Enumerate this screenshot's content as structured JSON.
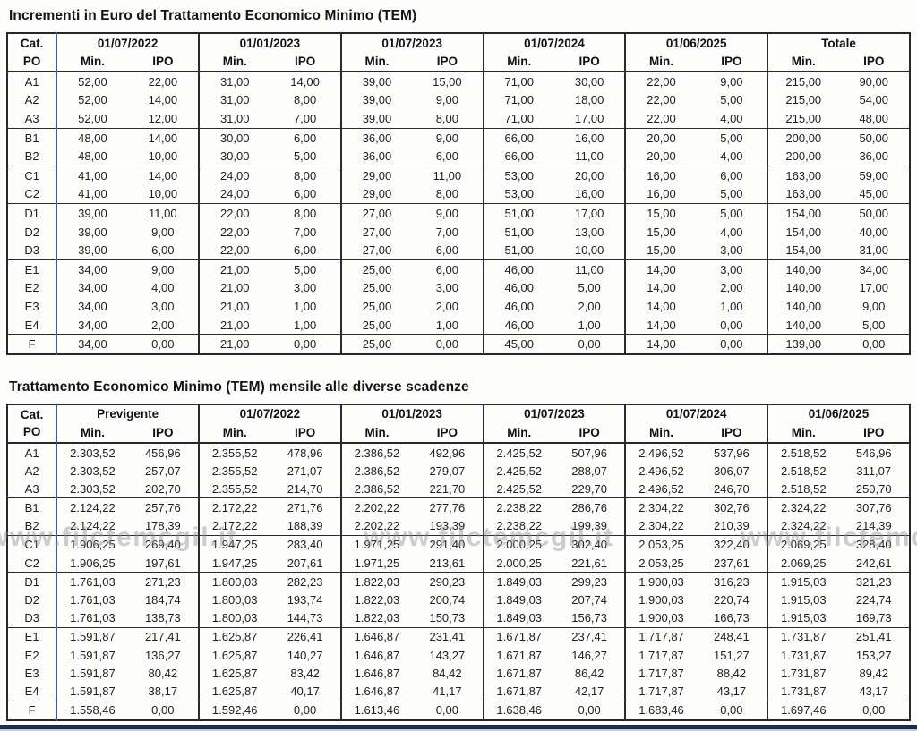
{
  "page": {
    "watermark_text": "www.filctemcgil.it"
  },
  "table1": {
    "name": "tem-increments-table",
    "title": "Incrementi in Euro del Trattamento Economico Minimo (TEM)",
    "cat_label_top": "Cat.",
    "cat_label_bottom": "PO",
    "min_label": "Min.",
    "ipo_label": "IPO",
    "column_groups": [
      "01/07/2022",
      "01/01/2023",
      "01/07/2023",
      "01/07/2024",
      "01/06/2025",
      "Totale"
    ],
    "category_group_sizes": [
      3,
      2,
      2,
      3,
      4,
      1
    ],
    "rows": [
      {
        "cat": "A1",
        "values": [
          "52,00",
          "22,00",
          "31,00",
          "14,00",
          "39,00",
          "15,00",
          "71,00",
          "30,00",
          "22,00",
          "9,00",
          "215,00",
          "90,00"
        ]
      },
      {
        "cat": "A2",
        "values": [
          "52,00",
          "14,00",
          "31,00",
          "8,00",
          "39,00",
          "9,00",
          "71,00",
          "18,00",
          "22,00",
          "5,00",
          "215,00",
          "54,00"
        ]
      },
      {
        "cat": "A3",
        "values": [
          "52,00",
          "12,00",
          "31,00",
          "7,00",
          "39,00",
          "8,00",
          "71,00",
          "17,00",
          "22,00",
          "4,00",
          "215,00",
          "48,00"
        ]
      },
      {
        "cat": "B1",
        "values": [
          "48,00",
          "14,00",
          "30,00",
          "6,00",
          "36,00",
          "9,00",
          "66,00",
          "16,00",
          "20,00",
          "5,00",
          "200,00",
          "50,00"
        ]
      },
      {
        "cat": "B2",
        "values": [
          "48,00",
          "10,00",
          "30,00",
          "5,00",
          "36,00",
          "6,00",
          "66,00",
          "11,00",
          "20,00",
          "4,00",
          "200,00",
          "36,00"
        ]
      },
      {
        "cat": "C1",
        "values": [
          "41,00",
          "14,00",
          "24,00",
          "8,00",
          "29,00",
          "11,00",
          "53,00",
          "20,00",
          "16,00",
          "6,00",
          "163,00",
          "59,00"
        ]
      },
      {
        "cat": "C2",
        "values": [
          "41,00",
          "10,00",
          "24,00",
          "6,00",
          "29,00",
          "8,00",
          "53,00",
          "16,00",
          "16,00",
          "5,00",
          "163,00",
          "45,00"
        ]
      },
      {
        "cat": "D1",
        "values": [
          "39,00",
          "11,00",
          "22,00",
          "8,00",
          "27,00",
          "9,00",
          "51,00",
          "17,00",
          "15,00",
          "5,00",
          "154,00",
          "50,00"
        ]
      },
      {
        "cat": "D2",
        "values": [
          "39,00",
          "9,00",
          "22,00",
          "7,00",
          "27,00",
          "7,00",
          "51,00",
          "13,00",
          "15,00",
          "4,00",
          "154,00",
          "40,00"
        ]
      },
      {
        "cat": "D3",
        "values": [
          "39,00",
          "6,00",
          "22,00",
          "6,00",
          "27,00",
          "6,00",
          "51,00",
          "10,00",
          "15,00",
          "3,00",
          "154,00",
          "31,00"
        ]
      },
      {
        "cat": "E1",
        "values": [
          "34,00",
          "9,00",
          "21,00",
          "5,00",
          "25,00",
          "6,00",
          "46,00",
          "11,00",
          "14,00",
          "3,00",
          "140,00",
          "34,00"
        ]
      },
      {
        "cat": "E2",
        "values": [
          "34,00",
          "4,00",
          "21,00",
          "3,00",
          "25,00",
          "3,00",
          "46,00",
          "5,00",
          "14,00",
          "2,00",
          "140,00",
          "17,00"
        ]
      },
      {
        "cat": "E3",
        "values": [
          "34,00",
          "3,00",
          "21,00",
          "1,00",
          "25,00",
          "2,00",
          "46,00",
          "2,00",
          "14,00",
          "1,00",
          "140,00",
          "9,00"
        ]
      },
      {
        "cat": "E4",
        "values": [
          "34,00",
          "2,00",
          "21,00",
          "1,00",
          "25,00",
          "1,00",
          "46,00",
          "1,00",
          "14,00",
          "0,00",
          "140,00",
          "5,00"
        ]
      },
      {
        "cat": "F",
        "values": [
          "34,00",
          "0,00",
          "21,00",
          "0,00",
          "25,00",
          "0,00",
          "45,00",
          "0,00",
          "14,00",
          "0,00",
          "139,00",
          "0,00"
        ]
      }
    ]
  },
  "table2": {
    "name": "tem-monthly-table",
    "title": "Trattamento Economico Minimo (TEM) mensile alle diverse scadenze",
    "cat_label_top": "Cat.",
    "cat_label_bottom": "PO",
    "min_label": "Min.",
    "ipo_label": "IPO",
    "column_groups": [
      "Previgente",
      "01/07/2022",
      "01/01/2023",
      "01/07/2023",
      "01/07/2024",
      "01/06/2025"
    ],
    "category_group_sizes": [
      3,
      2,
      2,
      3,
      4,
      1
    ],
    "rows": [
      {
        "cat": "A1",
        "values": [
          "2.303,52",
          "456,96",
          "2.355,52",
          "478,96",
          "2.386,52",
          "492,96",
          "2.425,52",
          "507,96",
          "2.496,52",
          "537,96",
          "2.518,52",
          "546,96"
        ]
      },
      {
        "cat": "A2",
        "values": [
          "2.303,52",
          "257,07",
          "2.355,52",
          "271,07",
          "2.386,52",
          "279,07",
          "2.425,52",
          "288,07",
          "2.496,52",
          "306,07",
          "2.518,52",
          "311,07"
        ]
      },
      {
        "cat": "A3",
        "values": [
          "2.303,52",
          "202,70",
          "2.355,52",
          "214,70",
          "2.386,52",
          "221,70",
          "2.425,52",
          "229,70",
          "2.496,52",
          "246,70",
          "2.518,52",
          "250,70"
        ]
      },
      {
        "cat": "B1",
        "values": [
          "2.124,22",
          "257,76",
          "2.172,22",
          "271,76",
          "2.202,22",
          "277,76",
          "2.238,22",
          "286,76",
          "2.304,22",
          "302,76",
          "2.324,22",
          "307,76"
        ]
      },
      {
        "cat": "B2",
        "values": [
          "2.124,22",
          "178,39",
          "2.172,22",
          "188,39",
          "2.202,22",
          "193,39",
          "2.238,22",
          "199,39",
          "2.304,22",
          "210,39",
          "2.324,22",
          "214,39"
        ]
      },
      {
        "cat": "C1",
        "values": [
          "1.906,25",
          "269,40",
          "1.947,25",
          "283,40",
          "1.971,25",
          "291,40",
          "2.000,25",
          "302,40",
          "2.053,25",
          "322,40",
          "2.069,25",
          "328,40"
        ]
      },
      {
        "cat": "C2",
        "values": [
          "1.906,25",
          "197,61",
          "1.947,25",
          "207,61",
          "1.971,25",
          "213,61",
          "2.000,25",
          "221,61",
          "2.053,25",
          "237,61",
          "2.069,25",
          "242,61"
        ]
      },
      {
        "cat": "D1",
        "values": [
          "1.761,03",
          "271,23",
          "1.800,03",
          "282,23",
          "1.822,03",
          "290,23",
          "1.849,03",
          "299,23",
          "1.900,03",
          "316,23",
          "1.915,03",
          "321,23"
        ]
      },
      {
        "cat": "D2",
        "values": [
          "1.761,03",
          "184,74",
          "1.800,03",
          "193,74",
          "1.822,03",
          "200,74",
          "1.849,03",
          "207,74",
          "1.900,03",
          "220,74",
          "1.915,03",
          "224,74"
        ]
      },
      {
        "cat": "D3",
        "values": [
          "1.761,03",
          "138,73",
          "1.800,03",
          "144,73",
          "1.822,03",
          "150,73",
          "1.849,03",
          "156,73",
          "1.900,03",
          "166,73",
          "1.915,03",
          "169,73"
        ]
      },
      {
        "cat": "E1",
        "values": [
          "1.591,87",
          "217,41",
          "1.625,87",
          "226,41",
          "1.646,87",
          "231,41",
          "1.671,87",
          "237,41",
          "1.717,87",
          "248,41",
          "1.731,87",
          "251,41"
        ]
      },
      {
        "cat": "E2",
        "values": [
          "1.591,87",
          "136,27",
          "1.625,87",
          "140,27",
          "1.646,87",
          "143,27",
          "1.671,87",
          "146,27",
          "1.717,87",
          "151,27",
          "1.731,87",
          "153,27"
        ]
      },
      {
        "cat": "E3",
        "values": [
          "1.591,87",
          "80,42",
          "1.625,87",
          "83,42",
          "1.646,87",
          "84,42",
          "1.671,87",
          "86,42",
          "1.717,87",
          "88,42",
          "1.731,87",
          "89,42"
        ]
      },
      {
        "cat": "E4",
        "values": [
          "1.591,87",
          "38,17",
          "1.625,87",
          "40,17",
          "1.646,87",
          "41,17",
          "1.671,87",
          "42,17",
          "1.717,87",
          "43,17",
          "1.731,87",
          "43,17"
        ]
      },
      {
        "cat": "F",
        "values": [
          "1.558,46",
          "0,00",
          "1.592,46",
          "0,00",
          "1.613,46",
          "0,00",
          "1.638,46",
          "0,00",
          "1.683,46",
          "0,00",
          "1.697,46",
          "0,00"
        ]
      }
    ]
  },
  "colors": {
    "border_dark": "#282828",
    "cat_divider_blue": "#46549c",
    "bottom_bar_navy": "#1d2b50",
    "watermark_gray": "#8d8d8d"
  }
}
